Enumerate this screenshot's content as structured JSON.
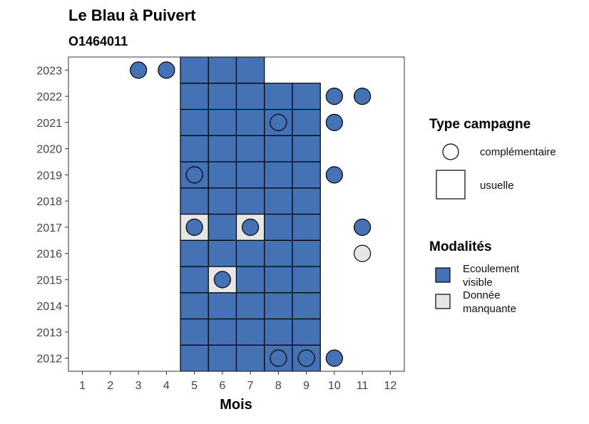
{
  "chart_data": {
    "type": "heatmap",
    "title": "Le Blau à Puivert",
    "subtitle": "O1464011",
    "xlabel": "Mois",
    "ylabel": "",
    "x_ticks": [
      1,
      2,
      3,
      4,
      5,
      6,
      7,
      8,
      9,
      10,
      11,
      12
    ],
    "y_ticks": [
      2012,
      2013,
      2014,
      2015,
      2016,
      2017,
      2018,
      2019,
      2020,
      2021,
      2022,
      2023
    ],
    "xlim": [
      0.5,
      12.5
    ],
    "ylim": [
      2011.5,
      2023.5
    ],
    "grid": false,
    "colors": {
      "Ecoulement visible": "#4472b4",
      "Donnée manquante": "#e6e6e6"
    },
    "campagnes_usuelles": [
      {
        "year": 2012,
        "months": [
          5,
          6,
          7,
          8,
          9
        ]
      },
      {
        "year": 2013,
        "months": [
          5,
          6,
          7,
          8,
          9
        ]
      },
      {
        "year": 2014,
        "months": [
          5,
          6,
          7,
          8,
          9
        ]
      },
      {
        "year": 2015,
        "months": [
          5,
          6,
          7,
          8,
          9
        ]
      },
      {
        "year": 2016,
        "months": [
          5,
          6,
          7,
          8,
          9
        ]
      },
      {
        "year": 2017,
        "months": [
          5,
          6,
          7,
          8,
          9
        ]
      },
      {
        "year": 2018,
        "months": [
          5,
          6,
          7,
          8,
          9
        ]
      },
      {
        "year": 2019,
        "months": [
          5,
          6,
          7,
          8,
          9
        ]
      },
      {
        "year": 2020,
        "months": [
          5,
          6,
          7,
          8,
          9
        ]
      },
      {
        "year": 2021,
        "months": [
          5,
          6,
          7,
          8,
          9
        ]
      },
      {
        "year": 2022,
        "months": [
          5,
          6,
          7,
          8,
          9
        ]
      },
      {
        "year": 2023,
        "months": [
          5,
          6,
          7
        ]
      }
    ],
    "donnees_manquantes_usuelles": [
      {
        "year": 2017,
        "month": 5
      },
      {
        "year": 2017,
        "month": 7
      },
      {
        "year": 2015,
        "month": 6
      }
    ],
    "campagnes_complementaires": [
      {
        "year": 2023,
        "month": 3,
        "modalite": "Ecoulement visible"
      },
      {
        "year": 2023,
        "month": 4,
        "modalite": "Ecoulement visible"
      },
      {
        "year": 2022,
        "month": 10,
        "modalite": "Ecoulement visible"
      },
      {
        "year": 2022,
        "month": 11,
        "modalite": "Ecoulement visible"
      },
      {
        "year": 2021,
        "month": 8,
        "modalite": "Ecoulement visible"
      },
      {
        "year": 2021,
        "month": 10,
        "modalite": "Ecoulement visible"
      },
      {
        "year": 2019,
        "month": 5,
        "modalite": "Ecoulement visible"
      },
      {
        "year": 2019,
        "month": 10,
        "modalite": "Ecoulement visible"
      },
      {
        "year": 2017,
        "month": 5,
        "modalite": "Ecoulement visible"
      },
      {
        "year": 2017,
        "month": 7,
        "modalite": "Ecoulement visible"
      },
      {
        "year": 2017,
        "month": 11,
        "modalite": "Ecoulement visible"
      },
      {
        "year": 2016,
        "month": 11,
        "modalite": "Donnée manquante"
      },
      {
        "year": 2015,
        "month": 6,
        "modalite": "Ecoulement visible"
      },
      {
        "year": 2012,
        "month": 8,
        "modalite": "Ecoulement visible"
      },
      {
        "year": 2012,
        "month": 9,
        "modalite": "Ecoulement visible"
      },
      {
        "year": 2012,
        "month": 10,
        "modalite": "Ecoulement visible"
      }
    ],
    "legend": {
      "placement": "right",
      "type_title": "Type campagne",
      "type_items": [
        "complémentaire",
        "usuelle"
      ],
      "mod_title": "Modalités",
      "mod_items": [
        {
          "line1": "Ecoulement",
          "line2": "visible",
          "color": "#4472b4"
        },
        {
          "line1": "Donnée",
          "line2": "manquante",
          "color": "#e6e6e6"
        }
      ]
    }
  }
}
